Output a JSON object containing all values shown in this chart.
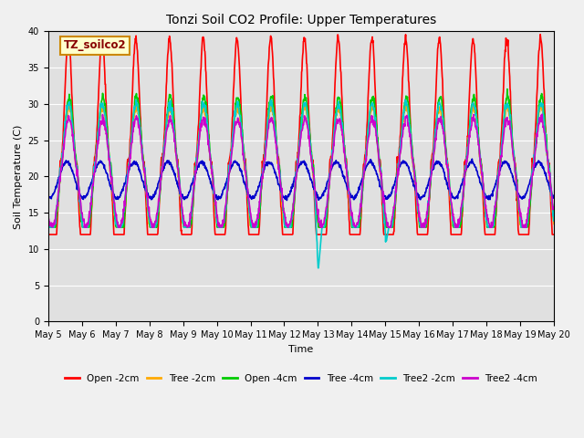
{
  "title": "Tonzi Soil CO2 Profile: Upper Temperatures",
  "xlabel": "Time",
  "ylabel": "Soil Temperature (C)",
  "ylim": [
    0,
    40
  ],
  "yticks": [
    0,
    5,
    10,
    15,
    20,
    25,
    30,
    35,
    40
  ],
  "plot_bgcolor": "#e0e0e0",
  "fig_bgcolor": "#f0f0f0",
  "annotation_text": "TZ_soilco2",
  "annotation_bgcolor": "#ffffcc",
  "annotation_edgecolor": "#cc8800",
  "series": [
    {
      "label": "Open -2cm",
      "color": "#ff0000",
      "lw": 1.2
    },
    {
      "label": "Tree -2cm",
      "color": "#ffaa00",
      "lw": 1.2
    },
    {
      "label": "Open -4cm",
      "color": "#00cc00",
      "lw": 1.2
    },
    {
      "label": "Tree -4cm",
      "color": "#0000cc",
      "lw": 1.2
    },
    {
      "label": "Tree2 -2cm",
      "color": "#00cccc",
      "lw": 1.2
    },
    {
      "label": "Tree2 -4cm",
      "color": "#cc00cc",
      "lw": 1.2
    }
  ],
  "date_labels": [
    "May 5",
    "May 6",
    "May 7",
    "May 8",
    "May 9",
    "May 10",
    "May 11",
    "May 12",
    "May 13",
    "May 14",
    "May 15",
    "May 16",
    "May 17",
    "May 18",
    "May 19",
    "May 20"
  ],
  "n_days": 15,
  "points_per_day": 96
}
